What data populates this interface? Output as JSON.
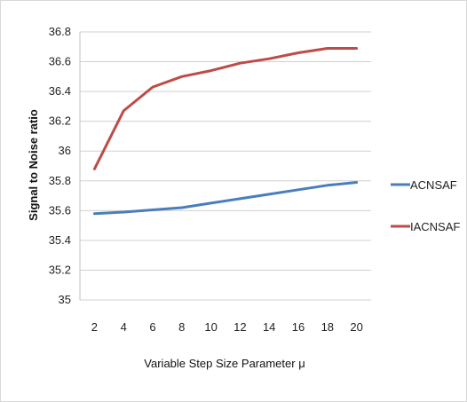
{
  "chart_data": {
    "type": "line",
    "title": "",
    "xlabel": "Variable Step Size Parameter μ",
    "ylabel": "Signal to Noise ratio",
    "x": [
      2,
      4,
      6,
      8,
      10,
      12,
      14,
      16,
      18,
      20
    ],
    "x_ticks": [
      "2",
      "4",
      "6",
      "8",
      "10",
      "12",
      "14",
      "16",
      "18",
      "20"
    ],
    "y_ticks": [
      "35",
      "35.2",
      "35.4",
      "35.6",
      "35.8",
      "36",
      "36.2",
      "36.4",
      "36.6",
      "36.8"
    ],
    "ylim": [
      35,
      36.8
    ],
    "grid": "horizontal",
    "legend_position": "right",
    "series": [
      {
        "name": "ACNSAF",
        "color": "#4a7ebb",
        "values": [
          35.58,
          35.59,
          35.605,
          35.62,
          35.65,
          35.68,
          35.71,
          35.74,
          35.77,
          35.79
        ]
      },
      {
        "name": "IACNSAF",
        "color": "#be4b48",
        "values": [
          35.88,
          36.27,
          36.43,
          36.5,
          36.54,
          36.59,
          36.62,
          36.66,
          36.69,
          36.69
        ]
      }
    ]
  }
}
